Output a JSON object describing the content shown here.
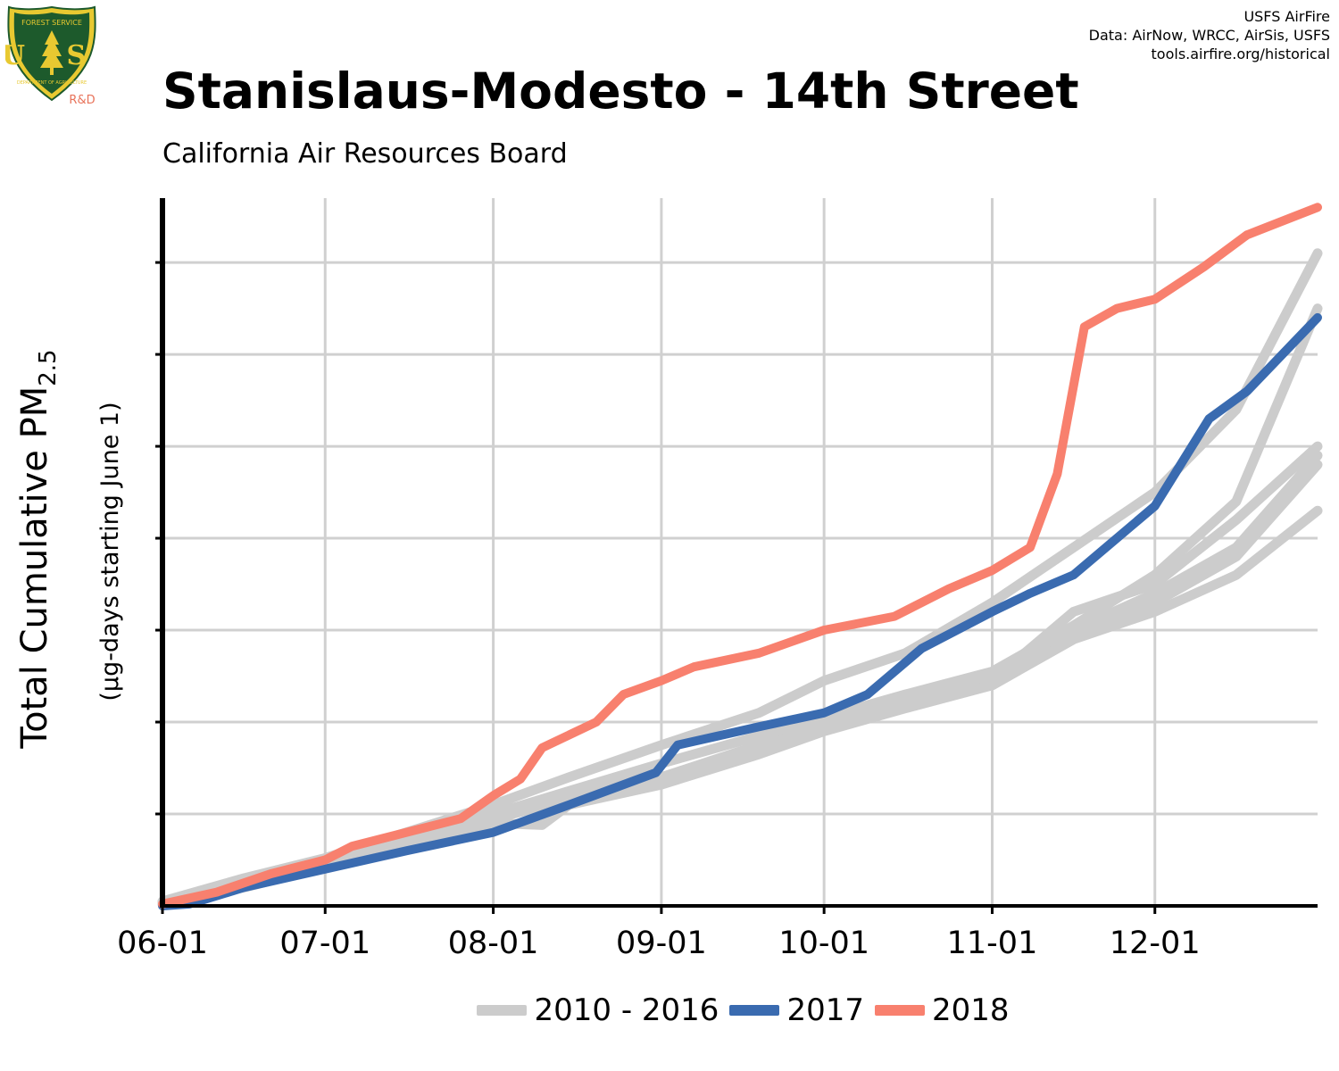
{
  "header": {
    "title": "Stanislaus-Modesto - 14th Street",
    "subtitle": "California Air Resources Board",
    "credits": [
      "USFS AirFire",
      "Data: AirNow, WRCC, AirSis, USFS",
      "tools.airfire.org/historical"
    ]
  },
  "logo": {
    "icon": "usfs-shield-logo",
    "top_text": "FOREST SERVICE",
    "letters": "U S",
    "bottom_text": "DEPARTMENT OF AGRICULTURE",
    "badge": "R&D",
    "colors": {
      "shield": "#1d5a2c",
      "trim": "#e8c931",
      "badge": "#e8735a"
    }
  },
  "chart_data": {
    "type": "line",
    "title": "Stanislaus-Modesto - 14th Street",
    "subtitle": "California Air Resources Board",
    "ylabel_main": "Total Cumulative PM",
    "ylabel_sub": "2.5",
    "ylabel2": "(µg-days starting June 1)",
    "xlabel": "",
    "x_ticks": [
      "06-01",
      "07-01",
      "08-01",
      "09-01",
      "10-01",
      "11-01",
      "12-01"
    ],
    "x_tick_days": [
      0,
      30,
      61,
      92,
      122,
      153,
      183
    ],
    "xlim": [
      0,
      213
    ],
    "ylim": [
      0,
      7.7
    ],
    "y_gridlines": [
      1,
      2,
      3,
      4,
      5,
      6,
      7
    ],
    "y_tick_labels_shown": false,
    "grid": true,
    "legend_position": "bottom",
    "colors": {
      "historical": "#cccccc",
      "2017": "#3a6bb0",
      "2018": "#f8806e"
    },
    "series": [
      {
        "group": "2010 - 2016",
        "points": [
          [
            0,
            0.05
          ],
          [
            15,
            0.3
          ],
          [
            30,
            0.52
          ],
          [
            45,
            0.8
          ],
          [
            61,
            1.1
          ],
          [
            75,
            1.4
          ],
          [
            92,
            1.75
          ],
          [
            110,
            2.1
          ],
          [
            122,
            2.45
          ],
          [
            137,
            2.75
          ],
          [
            153,
            3.3
          ],
          [
            168,
            3.9
          ],
          [
            183,
            4.5
          ],
          [
            198,
            5.4
          ],
          [
            213,
            7.1
          ]
        ]
      },
      {
        "group": "2010 - 2016",
        "points": [
          [
            0,
            0.03
          ],
          [
            15,
            0.25
          ],
          [
            30,
            0.48
          ],
          [
            45,
            0.75
          ],
          [
            61,
            1.0
          ],
          [
            75,
            1.25
          ],
          [
            92,
            1.55
          ],
          [
            110,
            1.85
          ],
          [
            122,
            2.05
          ],
          [
            137,
            2.3
          ],
          [
            153,
            2.55
          ],
          [
            168,
            3.05
          ],
          [
            183,
            3.6
          ],
          [
            198,
            4.4
          ],
          [
            213,
            6.5
          ]
        ]
      },
      {
        "group": "2010 - 2016",
        "points": [
          [
            0,
            0.04
          ],
          [
            15,
            0.28
          ],
          [
            30,
            0.5
          ],
          [
            45,
            0.78
          ],
          [
            61,
            1.02
          ],
          [
            75,
            1.2
          ],
          [
            92,
            1.4
          ],
          [
            110,
            1.75
          ],
          [
            122,
            2.0
          ],
          [
            137,
            2.2
          ],
          [
            153,
            2.45
          ],
          [
            168,
            3.2
          ],
          [
            183,
            3.5
          ],
          [
            198,
            4.2
          ],
          [
            213,
            5.0
          ]
        ]
      },
      {
        "group": "2010 - 2016",
        "points": [
          [
            0,
            0.02
          ],
          [
            15,
            0.22
          ],
          [
            30,
            0.45
          ],
          [
            45,
            0.7
          ],
          [
            61,
            0.95
          ],
          [
            75,
            1.15
          ],
          [
            92,
            1.38
          ],
          [
            110,
            1.7
          ],
          [
            122,
            2.0
          ],
          [
            137,
            2.25
          ],
          [
            153,
            2.5
          ],
          [
            168,
            3.0
          ],
          [
            183,
            3.4
          ],
          [
            198,
            3.9
          ],
          [
            213,
            4.9
          ]
        ]
      },
      {
        "group": "2010 - 2016",
        "points": [
          [
            0,
            0.03
          ],
          [
            15,
            0.24
          ],
          [
            30,
            0.46
          ],
          [
            45,
            0.72
          ],
          [
            61,
            0.98
          ],
          [
            75,
            1.18
          ],
          [
            92,
            1.4
          ],
          [
            110,
            1.72
          ],
          [
            122,
            1.95
          ],
          [
            137,
            2.2
          ],
          [
            153,
            2.4
          ],
          [
            168,
            2.9
          ],
          [
            183,
            3.3
          ],
          [
            198,
            3.8
          ],
          [
            213,
            4.8
          ]
        ]
      },
      {
        "group": "2010 - 2016",
        "points": [
          [
            0,
            0.02
          ],
          [
            15,
            0.2
          ],
          [
            30,
            0.42
          ],
          [
            45,
            0.66
          ],
          [
            61,
            0.9
          ],
          [
            70,
            0.88
          ],
          [
            75,
            1.1
          ],
          [
            92,
            1.32
          ],
          [
            110,
            1.65
          ],
          [
            122,
            1.9
          ],
          [
            137,
            2.15
          ],
          [
            153,
            2.4
          ],
          [
            168,
            2.9
          ],
          [
            183,
            3.2
          ],
          [
            198,
            3.6
          ],
          [
            213,
            4.3
          ]
        ]
      },
      {
        "group": "2017",
        "points": [
          [
            0,
            0
          ],
          [
            5,
            0.02
          ],
          [
            15,
            0.2
          ],
          [
            30,
            0.4
          ],
          [
            45,
            0.6
          ],
          [
            61,
            0.8
          ],
          [
            75,
            1.1
          ],
          [
            91,
            1.45
          ],
          [
            95,
            1.75
          ],
          [
            110,
            1.95
          ],
          [
            122,
            2.1
          ],
          [
            130,
            2.3
          ],
          [
            140,
            2.8
          ],
          [
            153,
            3.2
          ],
          [
            160,
            3.4
          ],
          [
            168,
            3.6
          ],
          [
            175,
            3.95
          ],
          [
            183,
            4.35
          ],
          [
            193,
            5.3
          ],
          [
            200,
            5.6
          ],
          [
            213,
            6.4
          ]
        ]
      },
      {
        "group": "2018",
        "points": [
          [
            0,
            0.02
          ],
          [
            10,
            0.15
          ],
          [
            20,
            0.35
          ],
          [
            30,
            0.5
          ],
          [
            35,
            0.65
          ],
          [
            45,
            0.8
          ],
          [
            55,
            0.95
          ],
          [
            61,
            1.2
          ],
          [
            66,
            1.38
          ],
          [
            70,
            1.72
          ],
          [
            80,
            2.0
          ],
          [
            85,
            2.3
          ],
          [
            92,
            2.45
          ],
          [
            98,
            2.6
          ],
          [
            110,
            2.75
          ],
          [
            122,
            3.0
          ],
          [
            135,
            3.15
          ],
          [
            145,
            3.45
          ],
          [
            153,
            3.65
          ],
          [
            160,
            3.9
          ],
          [
            165,
            4.7
          ],
          [
            170,
            6.3
          ],
          [
            176,
            6.5
          ],
          [
            183,
            6.6
          ],
          [
            192,
            6.95
          ],
          [
            200,
            7.3
          ],
          [
            213,
            7.6
          ]
        ]
      }
    ],
    "legend": [
      {
        "label": "2010 - 2016",
        "color": "#cccccc"
      },
      {
        "label": "2017",
        "color": "#3a6bb0"
      },
      {
        "label": "2018",
        "color": "#f8806e"
      }
    ]
  }
}
